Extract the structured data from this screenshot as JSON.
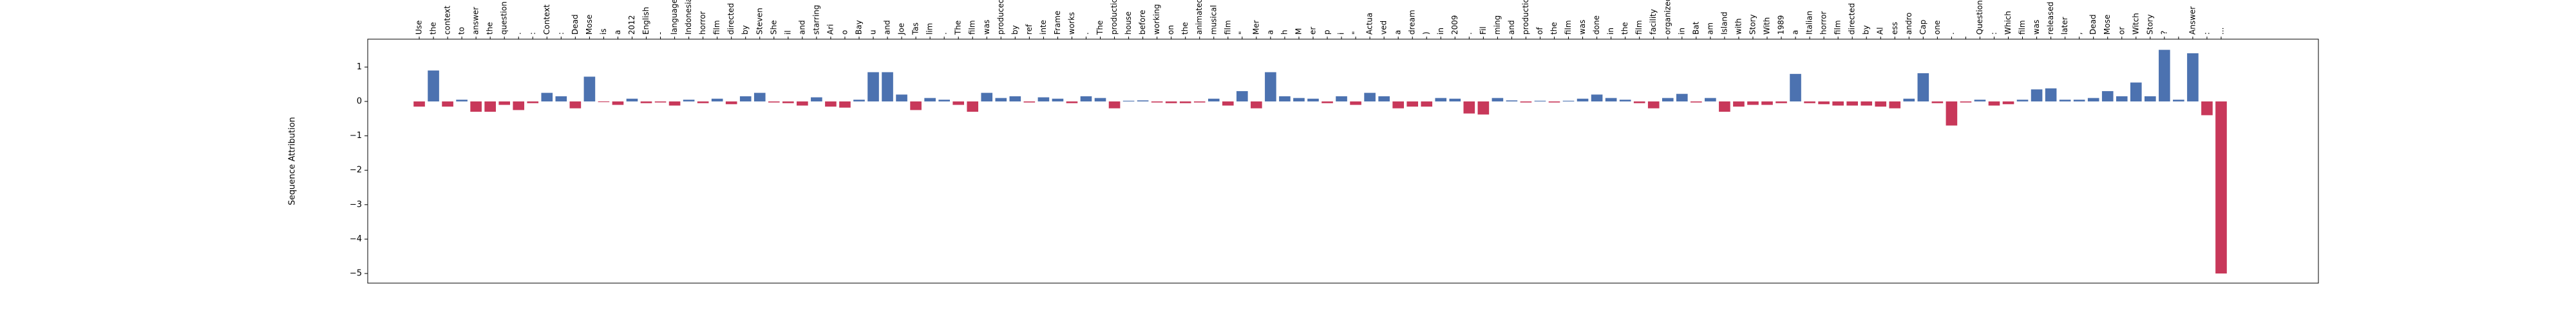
{
  "chart_data": {
    "type": "bar",
    "y_label": "Sequence Attribution",
    "categories": [
      "Use",
      "the",
      "context",
      "to",
      "answer",
      "the",
      "question",
      ".",
      ":",
      "Context",
      ":",
      "Dead",
      "Mose",
      "is",
      "a",
      "2012",
      "English",
      "-",
      "language",
      "Indonesian",
      "horror",
      "film",
      "directed",
      "by",
      "Steven",
      "She",
      "il",
      "and",
      "starring",
      "Ari",
      "o",
      "Bay",
      "u",
      "and",
      "Joe",
      "Tas",
      "lim",
      ".",
      "The",
      "film",
      "was",
      "produced",
      "by",
      "ref",
      "inte",
      "Frame",
      "works",
      ".",
      "The",
      "production",
      "house",
      "before",
      "working",
      "on",
      "the",
      "animated",
      "musical",
      "film",
      "\"",
      "Mer",
      "a",
      "h",
      "M",
      "er",
      "p",
      "i",
      "\"",
      "Actua",
      "ved",
      "a",
      "dream",
      ")",
      "in",
      "2009",
      ".",
      "Fil",
      "ming",
      "and",
      "production",
      "of",
      "the",
      "film",
      "was",
      "done",
      "in",
      "the",
      "film",
      "facility",
      "organized",
      "in",
      "Bat",
      "am",
      "Island",
      "with",
      "Story",
      "With",
      "1989",
      "a",
      "Italian",
      "horror",
      "film",
      "directed",
      "by",
      "Al",
      "ess",
      "andro",
      "Cap",
      "one",
      ".",
      "\n",
      "Question",
      ":",
      "Which",
      "film",
      "was",
      "released",
      "later",
      ",",
      "Dead",
      "Mose",
      "or",
      "Witch",
      "Story",
      "?",
      "\n",
      "Answer",
      ":",
      "..."
    ],
    "values": [
      -0.15,
      0.9,
      -0.15,
      0.05,
      -0.3,
      -0.3,
      -0.1,
      -0.25,
      -0.05,
      0.25,
      0.15,
      -0.2,
      0.72,
      -0.02,
      -0.1,
      0.08,
      -0.05,
      -0.03,
      -0.12,
      0.05,
      -0.05,
      0.08,
      -0.08,
      0.15,
      0.25,
      -0.03,
      -0.05,
      -0.12,
      0.12,
      -0.15,
      -0.18,
      0.05,
      0.85,
      0.85,
      0.2,
      -0.25,
      0.1,
      0.05,
      -0.1,
      -0.3,
      0.25,
      0.1,
      0.15,
      -0.03,
      0.12,
      0.08,
      -0.05,
      0.15,
      0.1,
      -0.2,
      0.02,
      0.03,
      -0.03,
      -0.05,
      -0.05,
      -0.03,
      0.08,
      -0.12,
      0.3,
      -0.2,
      0.85,
      0.15,
      0.1,
      0.08,
      -0.05,
      0.15,
      -0.1,
      0.25,
      0.15,
      -0.2,
      -0.15,
      -0.15,
      0.1,
      0.08,
      -0.35,
      -0.38,
      0.1,
      0.03,
      -0.03,
      0.02,
      -0.03,
      0.02,
      0.08,
      0.2,
      0.1,
      0.05,
      -0.05,
      -0.2,
      0.1,
      0.22,
      -0.03,
      0.1,
      -0.3,
      -0.15,
      -0.1,
      -0.1,
      -0.05,
      0.8,
      -0.05,
      -0.08,
      -0.12,
      -0.12,
      -0.12,
      -0.15,
      -0.2,
      0.08,
      0.82,
      -0.05,
      -0.7,
      -0.03,
      0.05,
      -0.12,
      -0.08,
      0.05,
      0.35,
      0.38,
      0.05,
      0.05,
      0.1,
      0.3,
      0.15,
      0.55,
      0.15,
      1.5,
      0.05,
      1.4,
      -0.4,
      -5.0
    ],
    "positive_color": "#4c72b0",
    "negative_color": "#c8385a",
    "ylim": [
      -5.28,
      1.81
    ],
    "yticks": [
      1,
      0,
      {
        "value": -1,
        "label": "−1"
      },
      {
        "value": -2,
        "label": "−2"
      },
      {
        "value": -3,
        "label": "−3"
      },
      {
        "value": -4,
        "label": "−4"
      },
      {
        "value": -5,
        "label": "−5"
      }
    ]
  }
}
